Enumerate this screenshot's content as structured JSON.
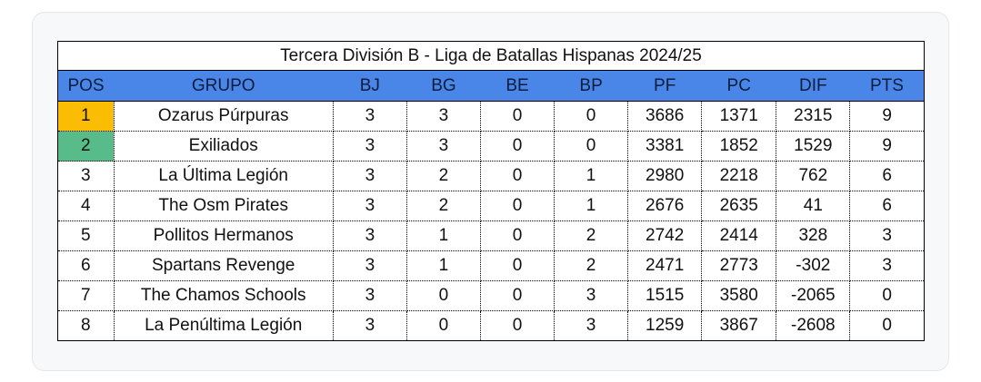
{
  "table": {
    "title": "Tercera División B - Liga de Batallas Hispanas 2024/25",
    "headers": [
      "POS",
      "GRUPO",
      "BJ",
      "BG",
      "BE",
      "BP",
      "PF",
      "PC",
      "DIF",
      "PTS"
    ],
    "header_color": "#4a86e8",
    "highlight_colors": {
      "first": "#fbbc04",
      "second": "#57bb8a"
    },
    "rows": [
      [
        "1",
        "Ozarus Púrpuras",
        "3",
        "3",
        "0",
        "0",
        "3686",
        "1371",
        "2315",
        "9"
      ],
      [
        "2",
        "Exiliados",
        "3",
        "3",
        "0",
        "0",
        "3381",
        "1852",
        "1529",
        "9"
      ],
      [
        "3",
        "La Última Legión",
        "3",
        "2",
        "0",
        "1",
        "2980",
        "2218",
        "762",
        "6"
      ],
      [
        "4",
        "The Osm Pirates",
        "3",
        "2",
        "0",
        "1",
        "2676",
        "2635",
        "41",
        "6"
      ],
      [
        "5",
        "Pollitos Hermanos",
        "3",
        "1",
        "0",
        "2",
        "2742",
        "2414",
        "328",
        "3"
      ],
      [
        "6",
        "Spartans Revenge",
        "3",
        "1",
        "0",
        "2",
        "2471",
        "2773",
        "-302",
        "3"
      ],
      [
        "7",
        "The Chamos Schools",
        "3",
        "0",
        "0",
        "3",
        "1515",
        "3580",
        "-2065",
        "0"
      ],
      [
        "8",
        "La Penúltima Legión",
        "3",
        "0",
        "0",
        "3",
        "1259",
        "3867",
        "-2608",
        "0"
      ]
    ]
  }
}
